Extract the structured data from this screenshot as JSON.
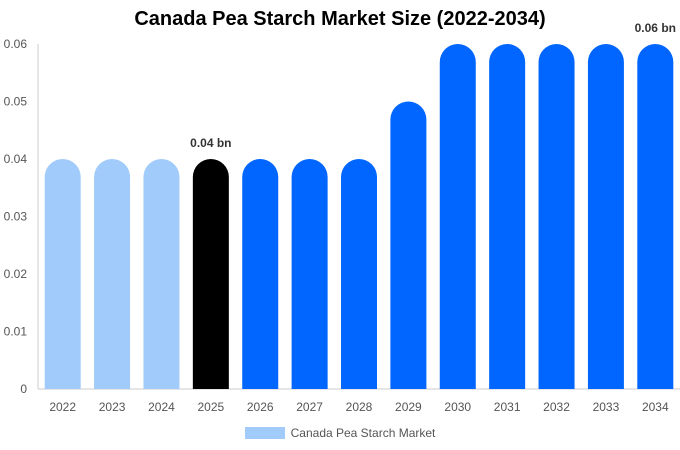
{
  "chart_data": {
    "type": "bar",
    "title": "Canada Pea Starch Market Size (2022-2034)",
    "xlabel": "",
    "ylabel": "",
    "categories": [
      "2022",
      "2023",
      "2024",
      "2025",
      "2026",
      "2027",
      "2028",
      "2029",
      "2030",
      "2031",
      "2032",
      "2033",
      "2034"
    ],
    "series": [
      {
        "name": "Canada Pea Starch Market",
        "values": [
          0.04,
          0.04,
          0.04,
          0.04,
          0.04,
          0.04,
          0.04,
          0.05,
          0.06,
          0.06,
          0.06,
          0.06,
          0.06
        ]
      }
    ],
    "ylim": [
      0,
      0.06
    ],
    "yticks": [
      "0",
      "0.01",
      "0.02",
      "0.03",
      "0.04",
      "0.05",
      "0.06"
    ],
    "annotations": [
      {
        "category": "2025",
        "text": "0.04 bn"
      },
      {
        "category": "2034",
        "text": "0.06 bn"
      }
    ],
    "grid": false,
    "legend_position": "bottom",
    "colors": {
      "historical": "#a0cbfa",
      "current": "#000000",
      "forecast": "#0066ff",
      "axis": "#cccccc",
      "tick_text": "#555555"
    },
    "bar_color_groups": [
      "historical",
      "historical",
      "historical",
      "current",
      "forecast",
      "forecast",
      "forecast",
      "forecast",
      "forecast",
      "forecast",
      "forecast",
      "forecast",
      "forecast"
    ]
  }
}
